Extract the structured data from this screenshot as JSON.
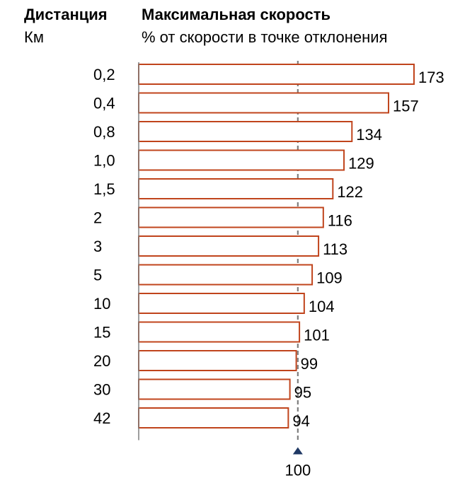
{
  "header": {
    "distance_title": "Дистанция",
    "distance_unit": "Км",
    "speed_title": "Максимальная скорость",
    "speed_subtitle": "% от скорости в точке отклонения"
  },
  "colors": {
    "bar_stroke": "#C0441C",
    "bar_fill": "#FFFFFF",
    "reference_line": "#7F7F7F",
    "reference_marker": "#1F3864",
    "axis": "#7F7F7F"
  },
  "chart_data": {
    "type": "bar",
    "orientation": "horizontal",
    "categories": [
      "0,2",
      "0,4",
      "0,8",
      "1,0",
      "1,5",
      "2",
      "3",
      "5",
      "10",
      "15",
      "20",
      "30",
      "42"
    ],
    "values": [
      173,
      157,
      134,
      129,
      122,
      116,
      113,
      109,
      104,
      101,
      99,
      95,
      94
    ],
    "value_labels": [
      "173",
      "157",
      "134",
      "129",
      "122",
      "116",
      "113",
      "109",
      "104",
      "101",
      "99",
      "95",
      "94"
    ],
    "reference_value": 100,
    "reference_label": "100",
    "xlim": [
      0,
      173
    ],
    "grid": false,
    "legend": "none"
  }
}
